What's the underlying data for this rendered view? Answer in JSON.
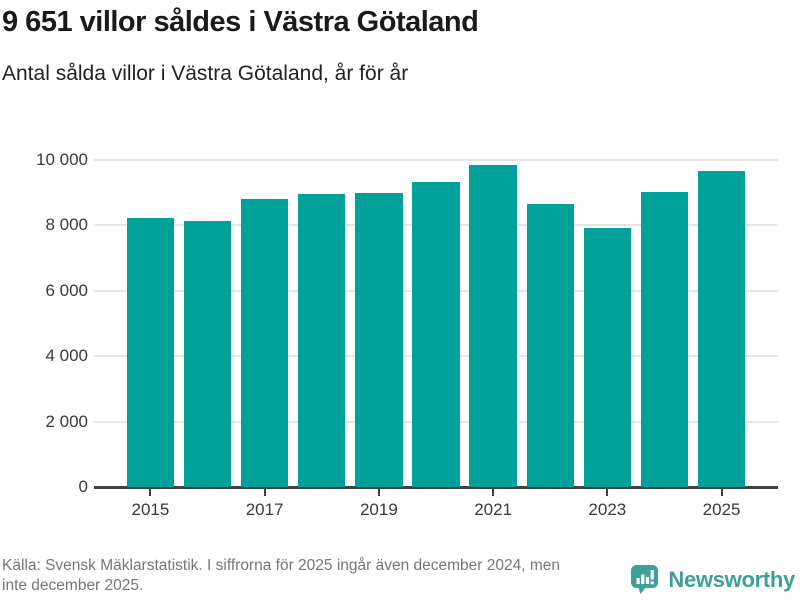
{
  "header": {
    "title": "9 651 villor såldes i Västra Götaland",
    "subtitle": "Antal sålda villor i Västra Götaland, år för år"
  },
  "chart_data": {
    "type": "bar",
    "categories": [
      "2015",
      "2016",
      "2017",
      "2018",
      "2019",
      "2020",
      "2021",
      "2022",
      "2023",
      "2024",
      "2025"
    ],
    "values": [
      8230,
      8130,
      8810,
      8970,
      8990,
      9340,
      9860,
      8650,
      7910,
      9030,
      9651
    ],
    "title": "9 651 villor såldes i Västra Götaland",
    "subtitle": "Antal sålda villor i Västra Götaland, år för år",
    "xlabel": "",
    "ylabel": "",
    "ylim": [
      0,
      10000
    ],
    "yticks": [
      0,
      2000,
      4000,
      6000,
      8000,
      10000
    ],
    "ytick_labels": [
      "0",
      "2 000",
      "4 000",
      "6 000",
      "8 000",
      "10 000"
    ],
    "xtick_labels": [
      "2015",
      "2017",
      "2019",
      "2021",
      "2023",
      "2025"
    ],
    "xticks_every": 2,
    "grid": true,
    "legend": "none",
    "bar_color": "#00a19a"
  },
  "footer": {
    "source": "Källa: Svensk Mäklarstatistik. I siffrorna för 2025 ingår även december 2024, men\ninte december 2025.",
    "brand": "Newsworthy"
  },
  "colors": {
    "bar": "#00a19a",
    "brand": "#3f9f98",
    "axis": "#404040",
    "grid": "#e6e6e6",
    "title_text": "#1a1a1a",
    "footer_text": "#75757d"
  }
}
